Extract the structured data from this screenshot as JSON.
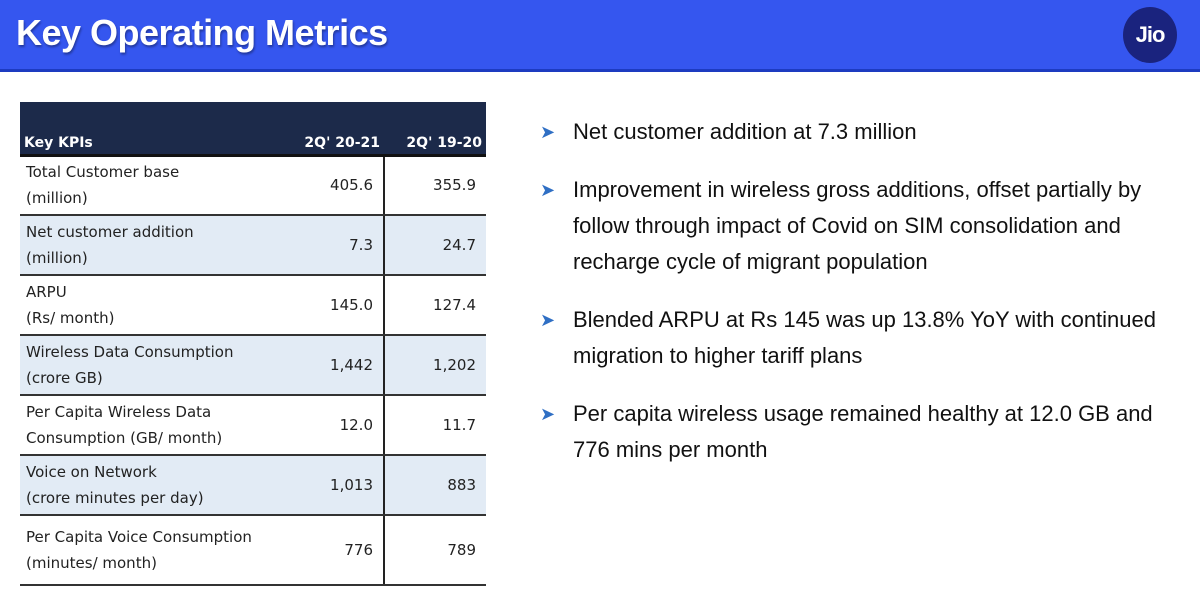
{
  "header": {
    "title": "Key Operating Metrics",
    "logo": "Jio"
  },
  "table": {
    "headers": [
      "Key KPIs",
      "2Q' 20-21",
      "2Q' 19-20"
    ],
    "rows": [
      {
        "l1": "Total Customer base",
        "l2": "(million)",
        "a": "405.6",
        "b": "355.9"
      },
      {
        "l1": "Net customer  addition",
        "l2": "(million)",
        "a": "7.3",
        "b": "24.7"
      },
      {
        "l1": "ARPU",
        "l2": "(Rs/ month)",
        "a": "145.0",
        "b": "127.4"
      },
      {
        "l1": "Wireless Data Consumption",
        "l2": "(crore GB)",
        "a": "1,442",
        "b": "1,202"
      },
      {
        "l1": "Per Capita Wireless Data",
        "l2": "Consumption (GB/ month)",
        "a": "12.0",
        "b": "11.7"
      },
      {
        "l1": "Voice on Network",
        "l2": "(crore minutes per day)",
        "a": "1,013",
        "b": "883"
      },
      {
        "l1": "Per Capita Voice Consumption",
        "l2": "(minutes/ month)",
        "a": "776",
        "b": "789"
      }
    ]
  },
  "bullets": [
    "Net customer addition at 7.3 million",
    "Improvement in wireless gross additions, offset partially by follow through impact of Covid on SIM consolidation and recharge cycle of migrant population",
    "Blended ARPU at Rs 145 was up 13.8% YoY with continued migration to higher tariff plans",
    "Per capita wireless usage remained healthy at 12.0 GB and 776 mins per month"
  ]
}
